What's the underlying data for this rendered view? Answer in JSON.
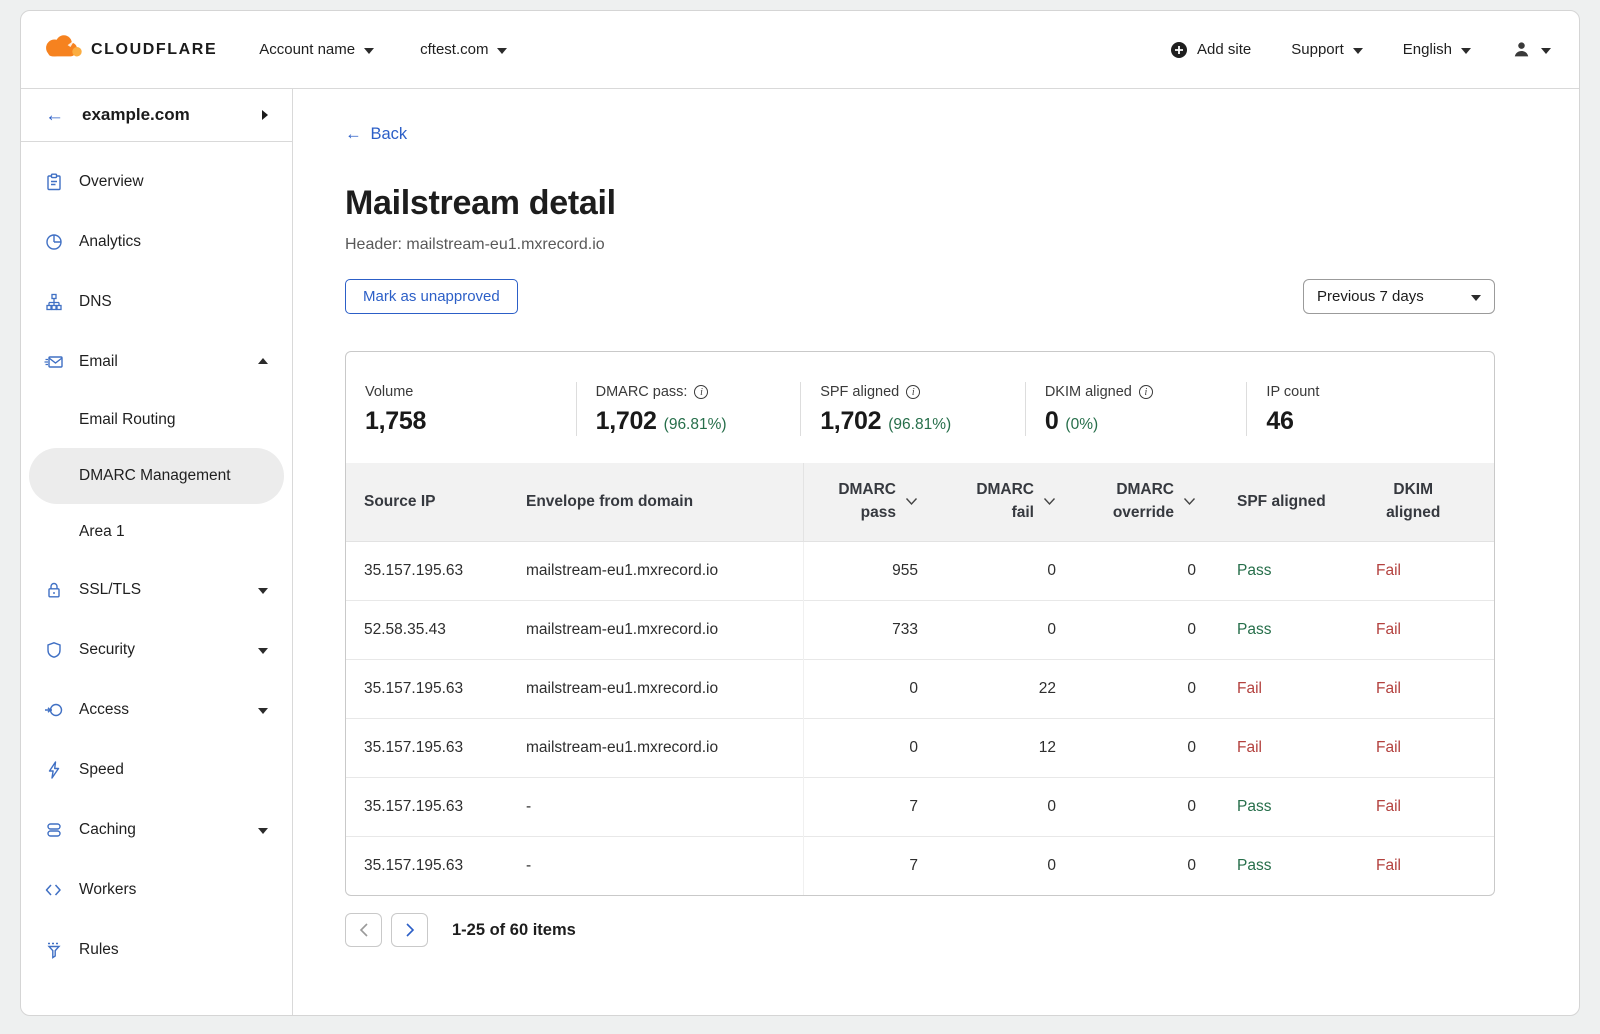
{
  "colors": {
    "accent": "#2c5fc7",
    "green": "#266e4a",
    "red": "#b3413e",
    "icon_blue": "#4070c4"
  },
  "topbar": {
    "logo_text": "CLOUDFLARE",
    "account_menu": "Account name",
    "site_menu": "cftest.com",
    "add_site": "Add site",
    "support": "Support",
    "language": "English"
  },
  "sidebar": {
    "site": "example.com",
    "items": [
      {
        "label": "Overview",
        "icon": "clipboard"
      },
      {
        "label": "Analytics",
        "icon": "pie"
      },
      {
        "label": "DNS",
        "icon": "network"
      },
      {
        "label": "Email",
        "icon": "envelope",
        "caret": "up"
      },
      {
        "label": "Email Routing",
        "sub": true
      },
      {
        "label": "DMARC Management",
        "sub": true,
        "selected": true
      },
      {
        "label": "Area 1",
        "sub": true
      },
      {
        "label": "SSL/TLS",
        "icon": "lock",
        "caret": "down"
      },
      {
        "label": "Security",
        "icon": "shield",
        "caret": "down"
      },
      {
        "label": "Access",
        "icon": "key",
        "caret": "down"
      },
      {
        "label": "Speed",
        "icon": "bolt"
      },
      {
        "label": "Caching",
        "icon": "cache",
        "caret": "down"
      },
      {
        "label": "Workers",
        "icon": "code"
      },
      {
        "label": "Rules",
        "icon": "funnel"
      }
    ]
  },
  "main": {
    "back_label": "Back",
    "title": "Mailstream detail",
    "subtitle": "Header: mailstream-eu1.mxrecord.io",
    "action_button": "Mark as unapproved",
    "period_select": "Previous 7 days",
    "stats": [
      {
        "label": "Volume",
        "value": "1,758",
        "info": false,
        "percent": ""
      },
      {
        "label": "DMARC pass:",
        "value": "1,702",
        "info": true,
        "percent": "(96.81%)"
      },
      {
        "label": "SPF aligned",
        "value": "1,702",
        "info": true,
        "percent": "(96.81%)"
      },
      {
        "label": "DKIM aligned",
        "value": "0",
        "info": true,
        "percent": "(0%)"
      },
      {
        "label": "IP count",
        "value": "46",
        "info": false,
        "percent": ""
      }
    ],
    "table": {
      "columns": [
        {
          "label": "Source IP",
          "sortable": false
        },
        {
          "label": "Envelope from domain",
          "sortable": false
        },
        {
          "label": "DMARC pass",
          "sortable": true
        },
        {
          "label": "DMARC fail",
          "sortable": true
        },
        {
          "label": "DMARC override",
          "sortable": true
        },
        {
          "label": "SPF aligned",
          "sortable": false
        },
        {
          "label": "DKIM aligned",
          "sortable": false
        }
      ],
      "rows": [
        {
          "source_ip": "35.157.195.63",
          "envelope_from": "mailstream-eu1.mxrecord.io",
          "dmarc_pass": "955",
          "dmarc_fail": "0",
          "dmarc_override": "0",
          "spf_aligned": "Pass",
          "dkim_aligned": "Fail"
        },
        {
          "source_ip": "52.58.35.43",
          "envelope_from": "mailstream-eu1.mxrecord.io",
          "dmarc_pass": "733",
          "dmarc_fail": "0",
          "dmarc_override": "0",
          "spf_aligned": "Pass",
          "dkim_aligned": "Fail"
        },
        {
          "source_ip": "35.157.195.63",
          "envelope_from": "mailstream-eu1.mxrecord.io",
          "dmarc_pass": "0",
          "dmarc_fail": "22",
          "dmarc_override": "0",
          "spf_aligned": "Fail",
          "dkim_aligned": "Fail"
        },
        {
          "source_ip": "35.157.195.63",
          "envelope_from": "mailstream-eu1.mxrecord.io",
          "dmarc_pass": "0",
          "dmarc_fail": "12",
          "dmarc_override": "0",
          "spf_aligned": "Fail",
          "dkim_aligned": "Fail"
        },
        {
          "source_ip": "35.157.195.63",
          "envelope_from": "-",
          "dmarc_pass": "7",
          "dmarc_fail": "0",
          "dmarc_override": "0",
          "spf_aligned": "Pass",
          "dkim_aligned": "Fail"
        },
        {
          "source_ip": "35.157.195.63",
          "envelope_from": "-",
          "dmarc_pass": "7",
          "dmarc_fail": "0",
          "dmarc_override": "0",
          "spf_aligned": "Pass",
          "dkim_aligned": "Fail"
        }
      ]
    },
    "pagination": {
      "label": "1-25 of 60 items"
    }
  }
}
